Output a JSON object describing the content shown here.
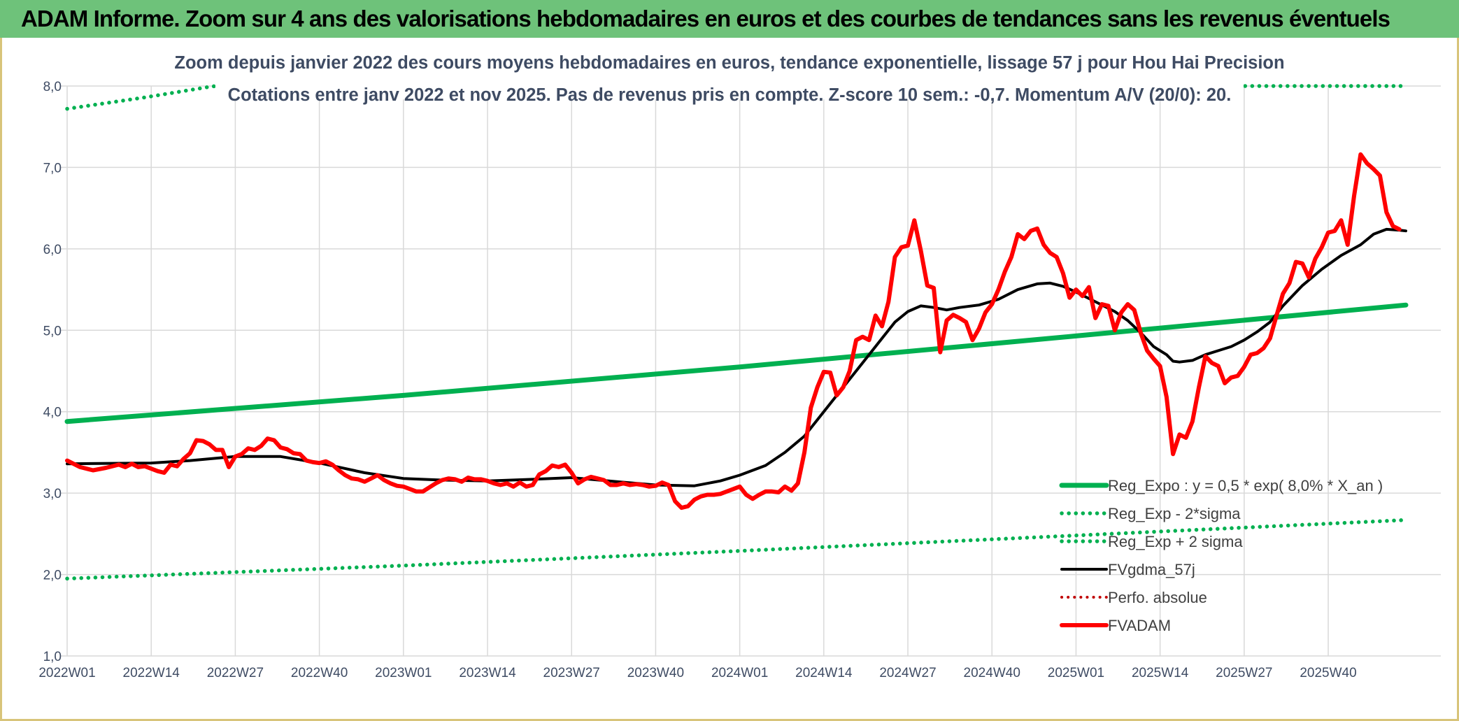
{
  "banner": {
    "title": "ADAM Informe. Zoom sur 4 ans des valorisations hebdomadaires en euros et des courbes de tendances sans les revenus éventuels"
  },
  "colors": {
    "banner_bg": "#6ec27a",
    "reg_expo": "#00b050",
    "fvgdma": "#000000",
    "fvadam": "#ff0000",
    "perfo": "#c00000",
    "grid": "#d9d9d9",
    "axis_text": "#3e4b63"
  },
  "chart_data": {
    "type": "line",
    "title": "Zoom depuis janvier 2022 des cours moyens hebdomadaires en euros, tendance exponentielle, lissage 57 j pour Hou Hai Precision",
    "subtitle": "Cotations entre janv 2022 et nov 2025. Pas de revenus pris en compte. Z-score 10 sem.: -0,7. Momentum A/V (20/0): 20.",
    "ylim": [
      1.0,
      8.0
    ],
    "y_ticks": [
      "1,0",
      "2,0",
      "3,0",
      "4,0",
      "5,0",
      "6,0",
      "7,0",
      "8,0"
    ],
    "x_ticks": [
      "2022W01",
      "2022W14",
      "2022W27",
      "2022W40",
      "2023W01",
      "2023W14",
      "2023W27",
      "2023W40",
      "2024W01",
      "2024W14",
      "2024W27",
      "2024W40",
      "2025W01",
      "2025W14",
      "2025W27",
      "2025W40"
    ],
    "x_ticks_week_index": [
      0,
      13,
      26,
      39,
      52,
      65,
      78,
      91,
      104,
      117,
      130,
      143,
      156,
      169,
      182,
      195
    ],
    "n_weeks": 208,
    "grid": true,
    "legend": {
      "placement": "bottom-right",
      "entries": [
        "Reg_Expo : y = 0,5 * exp( 8,0% *  X_an )",
        "Reg_Exp - 2*sigma",
        "Reg_Exp + 2 sigma",
        "FVgdma_57j",
        "Perfo. absolue",
        "FVADAM"
      ]
    },
    "series": [
      {
        "name": "Reg_Expo : y = 0,5 * exp( 8,0% *  X_an )",
        "style": "solid",
        "points": [
          [
            0,
            3.88
          ],
          [
            52,
            4.2
          ],
          [
            104,
            4.55
          ],
          [
            156,
            4.93
          ],
          [
            207,
            5.31
          ]
        ]
      },
      {
        "name": "Reg_Exp - 2*sigma",
        "style": "dotted",
        "points": [
          [
            0,
            1.95
          ],
          [
            52,
            2.11
          ],
          [
            104,
            2.29
          ],
          [
            156,
            2.48
          ],
          [
            207,
            2.67
          ]
        ]
      },
      {
        "name": "Reg_Exp + 2 sigma",
        "style": "dotted",
        "points": [
          [
            0,
            7.72
          ],
          [
            12,
            7.86
          ],
          [
            22,
            7.99
          ],
          [
            23,
            8.0
          ],
          [
            181,
            8.0
          ],
          [
            207,
            8.0
          ]
        ]
      },
      {
        "name": "FVgdma_57j",
        "style": "solid",
        "points": [
          [
            0,
            3.36
          ],
          [
            13,
            3.37
          ],
          [
            19,
            3.4
          ],
          [
            26,
            3.45
          ],
          [
            33,
            3.45
          ],
          [
            39,
            3.37
          ],
          [
            46,
            3.25
          ],
          [
            52,
            3.18
          ],
          [
            58,
            3.16
          ],
          [
            65,
            3.15
          ],
          [
            72,
            3.17
          ],
          [
            78,
            3.19
          ],
          [
            85,
            3.14
          ],
          [
            91,
            3.1
          ],
          [
            97,
            3.09
          ],
          [
            101,
            3.15
          ],
          [
            104,
            3.22
          ],
          [
            108,
            3.34
          ],
          [
            111,
            3.5
          ],
          [
            114,
            3.7
          ],
          [
            117,
            4.0
          ],
          [
            120,
            4.3
          ],
          [
            123,
            4.6
          ],
          [
            126,
            4.9
          ],
          [
            128,
            5.1
          ],
          [
            130,
            5.23
          ],
          [
            132,
            5.3
          ],
          [
            134,
            5.28
          ],
          [
            136,
            5.25
          ],
          [
            138,
            5.28
          ],
          [
            141,
            5.31
          ],
          [
            144,
            5.38
          ],
          [
            147,
            5.5
          ],
          [
            150,
            5.57
          ],
          [
            152,
            5.58
          ],
          [
            154,
            5.54
          ],
          [
            156,
            5.47
          ],
          [
            159,
            5.35
          ],
          [
            162,
            5.23
          ],
          [
            164,
            5.12
          ],
          [
            166,
            4.97
          ],
          [
            168,
            4.8
          ],
          [
            170,
            4.7
          ],
          [
            171,
            4.62
          ],
          [
            172,
            4.61
          ],
          [
            174,
            4.63
          ],
          [
            176,
            4.7
          ],
          [
            178,
            4.75
          ],
          [
            180,
            4.8
          ],
          [
            182,
            4.88
          ],
          [
            184,
            4.98
          ],
          [
            186,
            5.1
          ],
          [
            188,
            5.3
          ],
          [
            191,
            5.55
          ],
          [
            194,
            5.75
          ],
          [
            197,
            5.92
          ],
          [
            200,
            6.05
          ],
          [
            202,
            6.18
          ],
          [
            204,
            6.24
          ],
          [
            206,
            6.23
          ],
          [
            207,
            6.22
          ]
        ]
      },
      {
        "name": "Perfo. absolue",
        "style": "dotted",
        "points": []
      },
      {
        "name": "FVADAM",
        "style": "solid",
        "points": [
          [
            0,
            3.4
          ],
          [
            2,
            3.32
          ],
          [
            4,
            3.28
          ],
          [
            6,
            3.31
          ],
          [
            8,
            3.35
          ],
          [
            9,
            3.32
          ],
          [
            10,
            3.36
          ],
          [
            11,
            3.32
          ],
          [
            12,
            3.33
          ],
          [
            13,
            3.3
          ],
          [
            14,
            3.27
          ],
          [
            15,
            3.25
          ],
          [
            16,
            3.35
          ],
          [
            17,
            3.33
          ],
          [
            18,
            3.42
          ],
          [
            19,
            3.49
          ],
          [
            20,
            3.65
          ],
          [
            21,
            3.64
          ],
          [
            22,
            3.6
          ],
          [
            23,
            3.53
          ],
          [
            24,
            3.53
          ],
          [
            25,
            3.32
          ],
          [
            26,
            3.45
          ],
          [
            27,
            3.48
          ],
          [
            28,
            3.55
          ],
          [
            29,
            3.53
          ],
          [
            30,
            3.58
          ],
          [
            31,
            3.67
          ],
          [
            32,
            3.65
          ],
          [
            33,
            3.56
          ],
          [
            34,
            3.54
          ],
          [
            35,
            3.49
          ],
          [
            36,
            3.48
          ],
          [
            37,
            3.4
          ],
          [
            38,
            3.38
          ],
          [
            39,
            3.37
          ],
          [
            40,
            3.39
          ],
          [
            41,
            3.35
          ],
          [
            42,
            3.28
          ],
          [
            43,
            3.22
          ],
          [
            44,
            3.18
          ],
          [
            45,
            3.17
          ],
          [
            46,
            3.14
          ],
          [
            47,
            3.18
          ],
          [
            48,
            3.22
          ],
          [
            49,
            3.16
          ],
          [
            50,
            3.12
          ],
          [
            51,
            3.09
          ],
          [
            52,
            3.08
          ],
          [
            53,
            3.05
          ],
          [
            54,
            3.02
          ],
          [
            55,
            3.02
          ],
          [
            56,
            3.07
          ],
          [
            57,
            3.12
          ],
          [
            58,
            3.16
          ],
          [
            59,
            3.18
          ],
          [
            60,
            3.17
          ],
          [
            61,
            3.14
          ],
          [
            62,
            3.19
          ],
          [
            63,
            3.17
          ],
          [
            64,
            3.17
          ],
          [
            65,
            3.15
          ],
          [
            66,
            3.12
          ],
          [
            67,
            3.1
          ],
          [
            68,
            3.12
          ],
          [
            69,
            3.08
          ],
          [
            70,
            3.13
          ],
          [
            71,
            3.08
          ],
          [
            72,
            3.1
          ],
          [
            73,
            3.23
          ],
          [
            74,
            3.27
          ],
          [
            75,
            3.34
          ],
          [
            76,
            3.32
          ],
          [
            77,
            3.35
          ],
          [
            78,
            3.25
          ],
          [
            79,
            3.12
          ],
          [
            80,
            3.17
          ],
          [
            81,
            3.2
          ],
          [
            82,
            3.18
          ],
          [
            83,
            3.16
          ],
          [
            84,
            3.1
          ],
          [
            85,
            3.1
          ],
          [
            86,
            3.12
          ],
          [
            87,
            3.1
          ],
          [
            88,
            3.11
          ],
          [
            89,
            3.1
          ],
          [
            90,
            3.08
          ],
          [
            91,
            3.09
          ],
          [
            92,
            3.13
          ],
          [
            93,
            3.1
          ],
          [
            94,
            2.9
          ],
          [
            95,
            2.82
          ],
          [
            96,
            2.84
          ],
          [
            97,
            2.92
          ],
          [
            98,
            2.96
          ],
          [
            99,
            2.98
          ],
          [
            100,
            2.98
          ],
          [
            101,
            2.99
          ],
          [
            102,
            3.02
          ],
          [
            103,
            3.05
          ],
          [
            104,
            3.08
          ],
          [
            105,
            2.98
          ],
          [
            106,
            2.93
          ],
          [
            107,
            2.98
          ],
          [
            108,
            3.02
          ],
          [
            109,
            3.02
          ],
          [
            110,
            3.01
          ],
          [
            111,
            3.08
          ],
          [
            112,
            3.03
          ],
          [
            113,
            3.12
          ],
          [
            114,
            3.5
          ],
          [
            115,
            4.05
          ],
          [
            116,
            4.3
          ],
          [
            117,
            4.49
          ],
          [
            118,
            4.48
          ],
          [
            119,
            4.2
          ],
          [
            120,
            4.3
          ],
          [
            121,
            4.5
          ],
          [
            122,
            4.88
          ],
          [
            123,
            4.92
          ],
          [
            124,
            4.88
          ],
          [
            125,
            5.18
          ],
          [
            126,
            5.05
          ],
          [
            127,
            5.35
          ],
          [
            128,
            5.9
          ],
          [
            129,
            6.02
          ],
          [
            130,
            6.04
          ],
          [
            131,
            6.35
          ],
          [
            132,
            5.98
          ],
          [
            133,
            5.55
          ],
          [
            134,
            5.52
          ],
          [
            135,
            4.73
          ],
          [
            136,
            5.12
          ],
          [
            137,
            5.19
          ],
          [
            138,
            5.15
          ],
          [
            139,
            5.1
          ],
          [
            140,
            4.88
          ],
          [
            141,
            5.02
          ],
          [
            142,
            5.22
          ],
          [
            143,
            5.32
          ],
          [
            144,
            5.5
          ],
          [
            145,
            5.72
          ],
          [
            146,
            5.9
          ],
          [
            147,
            6.18
          ],
          [
            148,
            6.12
          ],
          [
            149,
            6.22
          ],
          [
            150,
            6.25
          ],
          [
            151,
            6.05
          ],
          [
            152,
            5.95
          ],
          [
            153,
            5.9
          ],
          [
            154,
            5.7
          ],
          [
            155,
            5.4
          ],
          [
            156,
            5.5
          ],
          [
            157,
            5.42
          ],
          [
            158,
            5.53
          ],
          [
            159,
            5.15
          ],
          [
            160,
            5.32
          ],
          [
            161,
            5.3
          ],
          [
            162,
            5.0
          ],
          [
            163,
            5.22
          ],
          [
            164,
            5.32
          ],
          [
            165,
            5.25
          ],
          [
            166,
            4.97
          ],
          [
            167,
            4.75
          ],
          [
            168,
            4.65
          ],
          [
            169,
            4.56
          ],
          [
            170,
            4.18
          ],
          [
            171,
            3.48
          ],
          [
            172,
            3.72
          ],
          [
            173,
            3.68
          ],
          [
            174,
            3.88
          ],
          [
            175,
            4.3
          ],
          [
            176,
            4.68
          ],
          [
            177,
            4.6
          ],
          [
            178,
            4.56
          ],
          [
            179,
            4.35
          ],
          [
            180,
            4.42
          ],
          [
            181,
            4.44
          ],
          [
            182,
            4.55
          ],
          [
            183,
            4.7
          ],
          [
            184,
            4.72
          ],
          [
            185,
            4.78
          ],
          [
            186,
            4.9
          ],
          [
            187,
            5.18
          ],
          [
            188,
            5.45
          ],
          [
            189,
            5.58
          ],
          [
            190,
            5.84
          ],
          [
            191,
            5.82
          ],
          [
            192,
            5.65
          ],
          [
            193,
            5.88
          ],
          [
            194,
            6.02
          ],
          [
            195,
            6.2
          ],
          [
            196,
            6.22
          ],
          [
            197,
            6.35
          ],
          [
            198,
            6.05
          ],
          [
            199,
            6.65
          ],
          [
            200,
            7.16
          ],
          [
            201,
            7.05
          ],
          [
            202,
            6.98
          ],
          [
            203,
            6.9
          ],
          [
            204,
            6.45
          ],
          [
            205,
            6.28
          ],
          [
            206,
            6.24
          ]
        ]
      }
    ]
  }
}
